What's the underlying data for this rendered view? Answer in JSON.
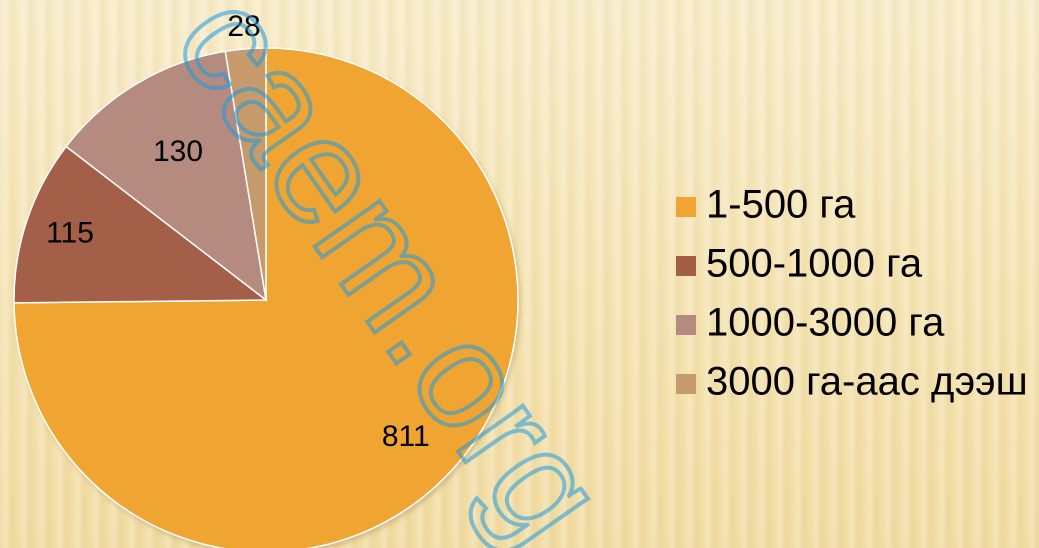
{
  "chart_data": {
    "type": "pie",
    "categories": [
      "1-500 га",
      "500-1000 га",
      "1000-3000 га",
      "3000 га-аас дээш"
    ],
    "values": [
      811,
      115,
      130,
      28
    ],
    "data_labels": [
      "811",
      "115",
      "130",
      "28"
    ],
    "colors": [
      "#f0a431",
      "#a35f46",
      "#b58a7f",
      "#c79a6c"
    ],
    "legend_position": "right",
    "start_angle": "12 o'clock",
    "direction": "clockwise"
  },
  "watermark": {
    "text": "caem.org",
    "color": "#1e9be0"
  }
}
